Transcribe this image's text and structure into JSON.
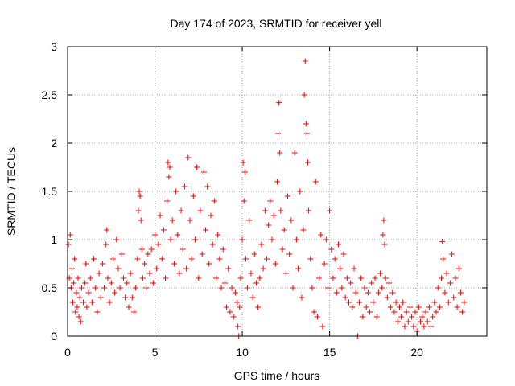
{
  "chart_data": {
    "type": "scatter",
    "title": "Day 174 of 2023, SRMTID for receiver yell",
    "xlabel": "GPS time / hours",
    "ylabel": "SRMTID / TECUs",
    "xlim": [
      0,
      24
    ],
    "ylim": [
      0,
      3
    ],
    "xticks": [
      0,
      5,
      10,
      15,
      20
    ],
    "yticks": [
      0,
      0.5,
      1,
      1.5,
      2,
      2.5,
      3
    ],
    "xtick_labels": [
      "0",
      "5",
      "10",
      "15",
      "20"
    ],
    "ytick_labels": [
      "0",
      "0.5",
      "1",
      "1.5",
      "2",
      "2.5",
      "3"
    ],
    "grid": true,
    "marker": "+",
    "color": "#ff0000",
    "series": [
      {
        "name": "SRMTID",
        "points": [
          [
            0.05,
            0.95
          ],
          [
            0.1,
            0.6
          ],
          [
            0.15,
            1.05
          ],
          [
            0.2,
            0.5
          ],
          [
            0.25,
            0.7
          ],
          [
            0.3,
            0.35
          ],
          [
            0.35,
            0.55
          ],
          [
            0.4,
            0.8
          ],
          [
            0.45,
            0.25
          ],
          [
            0.5,
            0.45
          ],
          [
            0.55,
            0.3
          ],
          [
            0.6,
            0.6
          ],
          [
            0.65,
            0.2
          ],
          [
            0.7,
            0.4
          ],
          [
            0.75,
            0.15
          ],
          [
            0.8,
            0.5
          ],
          [
            0.9,
            0.35
          ],
          [
            1.0,
            0.55
          ],
          [
            1.05,
            0.75
          ],
          [
            1.1,
            0.3
          ],
          [
            1.2,
            0.45
          ],
          [
            1.3,
            0.6
          ],
          [
            1.4,
            0.35
          ],
          [
            1.5,
            0.8
          ],
          [
            1.6,
            0.5
          ],
          [
            1.7,
            0.25
          ],
          [
            1.8,
            0.65
          ],
          [
            1.9,
            0.4
          ],
          [
            2.0,
            0.75
          ],
          [
            2.1,
            0.5
          ],
          [
            2.2,
            0.95
          ],
          [
            2.25,
            1.1
          ],
          [
            2.3,
            0.6
          ],
          [
            2.4,
            0.35
          ],
          [
            2.5,
            0.55
          ],
          [
            2.6,
            0.8
          ],
          [
            2.7,
            0.45
          ],
          [
            2.8,
            1.0
          ],
          [
            2.9,
            0.7
          ],
          [
            3.0,
            0.5
          ],
          [
            3.1,
            0.85
          ],
          [
            3.2,
            0.6
          ],
          [
            3.3,
            0.4
          ],
          [
            3.4,
            0.55
          ],
          [
            3.5,
            0.3
          ],
          [
            3.6,
            0.65
          ],
          [
            3.7,
            0.4
          ],
          [
            3.8,
            0.25
          ],
          [
            3.9,
            0.5
          ],
          [
            4.0,
            0.8
          ],
          [
            4.05,
            1.3
          ],
          [
            4.1,
            1.5
          ],
          [
            4.15,
            1.45
          ],
          [
            4.2,
            1.2
          ],
          [
            4.25,
            0.9
          ],
          [
            4.3,
            0.6
          ],
          [
            4.4,
            0.75
          ],
          [
            4.5,
            0.5
          ],
          [
            4.6,
            0.85
          ],
          [
            4.7,
            0.65
          ],
          [
            4.8,
            0.9
          ],
          [
            4.9,
            0.55
          ],
          [
            5.0,
            1.05
          ],
          [
            5.1,
            0.7
          ],
          [
            5.2,
            0.95
          ],
          [
            5.3,
            1.25
          ],
          [
            5.4,
            0.8
          ],
          [
            5.5,
            1.1
          ],
          [
            5.6,
            0.6
          ],
          [
            5.7,
            1.4
          ],
          [
            5.75,
            1.8
          ],
          [
            5.8,
            1.65
          ],
          [
            5.85,
            1.75
          ],
          [
            5.9,
            1.0
          ],
          [
            6.0,
            1.2
          ],
          [
            6.1,
            0.75
          ],
          [
            6.2,
            1.5
          ],
          [
            6.3,
            1.05
          ],
          [
            6.4,
            0.65
          ],
          [
            6.5,
            1.3
          ],
          [
            6.6,
            0.9
          ],
          [
            6.7,
            1.55
          ],
          [
            6.8,
            0.7
          ],
          [
            6.9,
            1.85
          ],
          [
            7.0,
            1.2
          ],
          [
            7.1,
            0.8
          ],
          [
            7.2,
            1.45
          ],
          [
            7.3,
            1.0
          ],
          [
            7.4,
            1.75
          ],
          [
            7.5,
            0.6
          ],
          [
            7.6,
            1.3
          ],
          [
            7.7,
            0.85
          ],
          [
            7.8,
            1.7
          ],
          [
            7.9,
            1.1
          ],
          [
            8.0,
            1.55
          ],
          [
            8.1,
            0.75
          ],
          [
            8.2,
            1.25
          ],
          [
            8.3,
            0.95
          ],
          [
            8.4,
            1.4
          ],
          [
            8.5,
            0.6
          ],
          [
            8.6,
            1.05
          ],
          [
            8.7,
            0.8
          ],
          [
            8.8,
            0.5
          ],
          [
            8.9,
            0.9
          ],
          [
            9.0,
            0.55
          ],
          [
            9.1,
            0.3
          ],
          [
            9.2,
            0.7
          ],
          [
            9.3,
            0.25
          ],
          [
            9.4,
            0.5
          ],
          [
            9.5,
            0.2
          ],
          [
            9.6,
            0.45
          ],
          [
            9.7,
            0.35
          ],
          [
            9.75,
            0.1
          ],
          [
            9.8,
            0.0
          ],
          [
            9.85,
            0.3
          ],
          [
            9.9,
            0.6
          ],
          [
            10.0,
            1.0
          ],
          [
            10.05,
            1.8
          ],
          [
            10.1,
            1.4
          ],
          [
            10.15,
            1.7
          ],
          [
            10.2,
            0.8
          ],
          [
            10.3,
            0.5
          ],
          [
            10.4,
            1.2
          ],
          [
            10.5,
            0.65
          ],
          [
            10.6,
            0.4
          ],
          [
            10.7,
            0.85
          ],
          [
            10.8,
            0.55
          ],
          [
            10.9,
            0.3
          ],
          [
            11.0,
            0.6
          ],
          [
            11.1,
            0.95
          ],
          [
            11.2,
            0.7
          ],
          [
            11.3,
            1.3
          ],
          [
            11.4,
            0.8
          ],
          [
            11.5,
            1.15
          ],
          [
            11.6,
            1.4
          ],
          [
            11.7,
            1.0
          ],
          [
            11.8,
            1.25
          ],
          [
            11.9,
            0.75
          ],
          [
            12.0,
            1.6
          ],
          [
            12.05,
            2.1
          ],
          [
            12.1,
            2.42
          ],
          [
            12.15,
            1.9
          ],
          [
            12.2,
            1.3
          ],
          [
            12.3,
            0.9
          ],
          [
            12.4,
            1.1
          ],
          [
            12.5,
            0.65
          ],
          [
            12.6,
            1.45
          ],
          [
            12.7,
            0.85
          ],
          [
            12.8,
            1.2
          ],
          [
            12.9,
            0.5
          ],
          [
            13.0,
            1.9
          ],
          [
            13.1,
            1.0
          ],
          [
            13.2,
            0.7
          ],
          [
            13.3,
            1.5
          ],
          [
            13.4,
            0.4
          ],
          [
            13.5,
            1.1
          ],
          [
            13.55,
            2.5
          ],
          [
            13.6,
            2.85
          ],
          [
            13.65,
            2.2
          ],
          [
            13.7,
            2.1
          ],
          [
            13.75,
            1.8
          ],
          [
            13.8,
            1.3
          ],
          [
            13.9,
            0.8
          ],
          [
            14.0,
            0.5
          ],
          [
            14.1,
            0.25
          ],
          [
            14.2,
            1.6
          ],
          [
            14.3,
            0.2
          ],
          [
            14.4,
            0.6
          ],
          [
            14.5,
            1.05
          ],
          [
            14.6,
            0.1
          ],
          [
            14.7,
            0.75
          ],
          [
            14.8,
            1.0
          ],
          [
            14.9,
            0.5
          ],
          [
            15.0,
            1.3
          ],
          [
            15.1,
            0.9
          ],
          [
            15.2,
            0.6
          ],
          [
            15.3,
            0.8
          ],
          [
            15.4,
            0.45
          ],
          [
            15.5,
            0.95
          ],
          [
            15.6,
            0.7
          ],
          [
            15.7,
            0.5
          ],
          [
            15.8,
            0.85
          ],
          [
            15.9,
            0.4
          ],
          [
            16.0,
            0.6
          ],
          [
            16.1,
            0.35
          ],
          [
            16.2,
            0.55
          ],
          [
            16.3,
            0.3
          ],
          [
            16.4,
            0.7
          ],
          [
            16.5,
            0.45
          ],
          [
            16.6,
            0.0
          ],
          [
            16.7,
            0.35
          ],
          [
            16.8,
            0.6
          ],
          [
            16.9,
            0.2
          ],
          [
            17.0,
            0.5
          ],
          [
            17.1,
            0.3
          ],
          [
            17.2,
            0.45
          ],
          [
            17.3,
            0.25
          ],
          [
            17.4,
            0.55
          ],
          [
            17.5,
            0.35
          ],
          [
            17.6,
            0.6
          ],
          [
            17.7,
            0.2
          ],
          [
            17.8,
            0.45
          ],
          [
            17.9,
            0.65
          ],
          [
            18.0,
            0.5
          ],
          [
            18.05,
            1.05
          ],
          [
            18.1,
            1.2
          ],
          [
            18.15,
            0.95
          ],
          [
            18.2,
            0.6
          ],
          [
            18.3,
            0.4
          ],
          [
            18.4,
            0.55
          ],
          [
            18.5,
            0.3
          ],
          [
            18.6,
            0.45
          ],
          [
            18.7,
            0.25
          ],
          [
            18.8,
            0.35
          ],
          [
            18.9,
            0.15
          ],
          [
            19.0,
            0.3
          ],
          [
            19.1,
            0.2
          ],
          [
            19.2,
            0.35
          ],
          [
            19.3,
            0.1
          ],
          [
            19.4,
            0.25
          ],
          [
            19.5,
            0.15
          ],
          [
            19.6,
            0.3
          ],
          [
            19.7,
            0.2
          ],
          [
            19.8,
            0.1
          ],
          [
            19.9,
            0.25
          ],
          [
            20.0,
            0.05
          ],
          [
            20.1,
            0.3
          ],
          [
            20.2,
            0.15
          ],
          [
            20.3,
            0.2
          ],
          [
            20.4,
            0.1
          ],
          [
            20.5,
            0.25
          ],
          [
            20.6,
            0.15
          ],
          [
            20.7,
            0.3
          ],
          [
            20.8,
            0.1
          ],
          [
            20.9,
            0.2
          ],
          [
            21.0,
            0.35
          ],
          [
            21.1,
            0.25
          ],
          [
            21.2,
            0.5
          ],
          [
            21.3,
            0.3
          ],
          [
            21.4,
            0.6
          ],
          [
            21.45,
            0.98
          ],
          [
            21.5,
            0.8
          ],
          [
            21.6,
            0.45
          ],
          [
            21.7,
            0.65
          ],
          [
            21.8,
            0.35
          ],
          [
            21.9,
            0.55
          ],
          [
            22.0,
            0.85
          ],
          [
            22.1,
            0.4
          ],
          [
            22.2,
            0.6
          ],
          [
            22.3,
            0.3
          ],
          [
            22.4,
            0.7
          ],
          [
            22.5,
            0.45
          ],
          [
            22.6,
            0.25
          ],
          [
            22.7,
            0.35
          ]
        ]
      }
    ]
  }
}
